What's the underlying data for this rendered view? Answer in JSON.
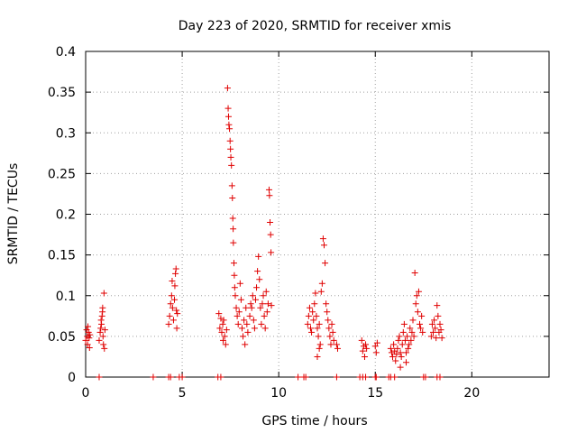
{
  "colors": {
    "series": "#e00000",
    "grid": "#a0a0a0",
    "axis": "#000000",
    "background": "#ffffff"
  },
  "chart_data": {
    "type": "scatter",
    "title": "Day 223 of 2020, SRMTID for receiver xmis",
    "xlabel": "GPS time / hours",
    "ylabel": "SRMTID / TECUs",
    "xlim": [
      0,
      24
    ],
    "ylim": [
      0,
      0.4
    ],
    "xticks": [
      0,
      5,
      10,
      15,
      20
    ],
    "xtick_labels": [
      "0",
      "5",
      "10",
      "15",
      "20"
    ],
    "yticks": [
      0,
      0.05,
      0.1,
      0.15,
      0.2,
      0.25,
      0.3,
      0.35,
      0.4
    ],
    "ytick_labels": [
      "0",
      "0.05",
      "0.1",
      "0.15",
      "0.2",
      "0.25",
      "0.3",
      "0.35",
      "0.4"
    ],
    "grid": true,
    "marker": "+",
    "series": [
      {
        "name": "SRMTID",
        "points": [
          [
            0.0,
            0.045
          ],
          [
            0.05,
            0.058
          ],
          [
            0.08,
            0.05
          ],
          [
            0.1,
            0.04
          ],
          [
            0.12,
            0.062
          ],
          [
            0.15,
            0.055
          ],
          [
            0.18,
            0.048
          ],
          [
            0.2,
            0.036
          ],
          [
            0.22,
            0.052
          ],
          [
            0.7,
            0.045
          ],
          [
            0.75,
            0.055
          ],
          [
            0.78,
            0.06
          ],
          [
            0.8,
            0.07
          ],
          [
            0.82,
            0.065
          ],
          [
            0.85,
            0.075
          ],
          [
            0.87,
            0.08
          ],
          [
            0.9,
            0.05
          ],
          [
            0.92,
            0.04
          ],
          [
            0.95,
            0.103
          ],
          [
            0.97,
            0.035
          ],
          [
            1.0,
            0.058
          ],
          [
            0.88,
            0.085
          ],
          [
            4.3,
            0.065
          ],
          [
            4.35,
            0.075
          ],
          [
            4.4,
            0.09
          ],
          [
            4.45,
            0.1
          ],
          [
            4.48,
            0.118
          ],
          [
            4.5,
            0.085
          ],
          [
            4.55,
            0.07
          ],
          [
            4.6,
            0.095
          ],
          [
            4.62,
            0.112
          ],
          [
            4.65,
            0.127
          ],
          [
            4.68,
            0.133
          ],
          [
            4.7,
            0.082
          ],
          [
            4.72,
            0.06
          ],
          [
            4.75,
            0.078
          ],
          [
            6.9,
            0.078
          ],
          [
            6.95,
            0.06
          ],
          [
            7.0,
            0.072
          ],
          [
            7.05,
            0.055
          ],
          [
            7.1,
            0.065
          ],
          [
            7.12,
            0.045
          ],
          [
            7.15,
            0.07
          ],
          [
            7.2,
            0.05
          ],
          [
            7.25,
            0.04
          ],
          [
            7.3,
            0.058
          ],
          [
            7.35,
            0.355
          ],
          [
            7.38,
            0.33
          ],
          [
            7.4,
            0.32
          ],
          [
            7.42,
            0.31
          ],
          [
            7.45,
            0.305
          ],
          [
            7.48,
            0.29
          ],
          [
            7.5,
            0.28
          ],
          [
            7.52,
            0.27
          ],
          [
            7.55,
            0.26
          ],
          [
            7.58,
            0.235
          ],
          [
            7.6,
            0.22
          ],
          [
            7.62,
            0.195
          ],
          [
            7.64,
            0.182
          ],
          [
            7.65,
            0.165
          ],
          [
            7.68,
            0.14
          ],
          [
            7.7,
            0.125
          ],
          [
            7.72,
            0.11
          ],
          [
            7.75,
            0.1
          ],
          [
            7.8,
            0.085
          ],
          [
            7.85,
            0.075
          ],
          [
            7.9,
            0.065
          ],
          [
            7.95,
            0.08
          ],
          [
            8.0,
            0.115
          ],
          [
            8.05,
            0.095
          ],
          [
            8.1,
            0.06
          ],
          [
            8.15,
            0.05
          ],
          [
            8.2,
            0.07
          ],
          [
            8.25,
            0.04
          ],
          [
            8.3,
            0.085
          ],
          [
            8.35,
            0.065
          ],
          [
            8.4,
            0.055
          ],
          [
            8.5,
            0.075
          ],
          [
            8.55,
            0.09
          ],
          [
            8.6,
            0.085
          ],
          [
            8.65,
            0.1
          ],
          [
            8.7,
            0.07
          ],
          [
            8.75,
            0.06
          ],
          [
            8.8,
            0.095
          ],
          [
            8.85,
            0.11
          ],
          [
            8.9,
            0.13
          ],
          [
            8.95,
            0.148
          ],
          [
            9.0,
            0.12
          ],
          [
            9.05,
            0.085
          ],
          [
            9.1,
            0.065
          ],
          [
            9.15,
            0.09
          ],
          [
            9.2,
            0.1
          ],
          [
            9.25,
            0.075
          ],
          [
            9.3,
            0.06
          ],
          [
            9.35,
            0.105
          ],
          [
            9.4,
            0.08
          ],
          [
            9.45,
            0.09
          ],
          [
            9.5,
            0.23
          ],
          [
            9.52,
            0.223
          ],
          [
            9.55,
            0.19
          ],
          [
            9.58,
            0.175
          ],
          [
            9.6,
            0.153
          ],
          [
            9.62,
            0.088
          ],
          [
            11.5,
            0.065
          ],
          [
            11.55,
            0.075
          ],
          [
            11.6,
            0.085
          ],
          [
            11.65,
            0.06
          ],
          [
            11.7,
            0.055
          ],
          [
            11.75,
            0.08
          ],
          [
            11.8,
            0.07
          ],
          [
            11.85,
            0.09
          ],
          [
            11.9,
            0.103
          ],
          [
            11.95,
            0.075
          ],
          [
            12.0,
            0.06
          ],
          [
            12.05,
            0.05
          ],
          [
            12.1,
            0.065
          ],
          [
            12.15,
            0.04
          ],
          [
            12.2,
            0.105
          ],
          [
            12.25,
            0.115
          ],
          [
            12.3,
            0.17
          ],
          [
            12.35,
            0.162
          ],
          [
            12.4,
            0.14
          ],
          [
            12.45,
            0.09
          ],
          [
            12.5,
            0.08
          ],
          [
            12.55,
            0.07
          ],
          [
            12.6,
            0.06
          ],
          [
            12.65,
            0.05
          ],
          [
            12.7,
            0.04
          ],
          [
            12.75,
            0.065
          ],
          [
            12.8,
            0.055
          ],
          [
            12.85,
            0.045
          ],
          [
            12.0,
            0.025
          ],
          [
            12.1,
            0.035
          ],
          [
            13.0,
            0.04
          ],
          [
            13.05,
            0.035
          ],
          [
            14.3,
            0.045
          ],
          [
            14.35,
            0.032
          ],
          [
            14.4,
            0.038
          ],
          [
            14.45,
            0.025
          ],
          [
            14.5,
            0.04
          ],
          [
            14.55,
            0.035
          ],
          [
            15.0,
            0.038
          ],
          [
            15.05,
            0.03
          ],
          [
            15.1,
            0.042
          ],
          [
            15.8,
            0.035
          ],
          [
            15.85,
            0.03
          ],
          [
            15.9,
            0.025
          ],
          [
            15.95,
            0.04
          ],
          [
            16.0,
            0.032
          ],
          [
            16.05,
            0.02
          ],
          [
            16.1,
            0.028
          ],
          [
            16.15,
            0.035
          ],
          [
            16.2,
            0.045
          ],
          [
            16.25,
            0.05
          ],
          [
            16.3,
            0.03
          ],
          [
            16.35,
            0.025
          ],
          [
            16.4,
            0.04
          ],
          [
            16.45,
            0.055
          ],
          [
            16.5,
            0.065
          ],
          [
            16.55,
            0.045
          ],
          [
            16.6,
            0.03
          ],
          [
            16.65,
            0.05
          ],
          [
            16.7,
            0.035
          ],
          [
            16.75,
            0.04
          ],
          [
            16.8,
            0.06
          ],
          [
            16.85,
            0.045
          ],
          [
            16.9,
            0.055
          ],
          [
            16.95,
            0.07
          ],
          [
            17.0,
            0.05
          ],
          [
            17.05,
            0.128
          ],
          [
            17.1,
            0.09
          ],
          [
            17.15,
            0.1
          ],
          [
            17.2,
            0.08
          ],
          [
            17.25,
            0.105
          ],
          [
            17.3,
            0.065
          ],
          [
            17.35,
            0.06
          ],
          [
            17.4,
            0.075
          ],
          [
            17.45,
            0.055
          ],
          [
            16.3,
            0.012
          ],
          [
            16.6,
            0.018
          ],
          [
            17.9,
            0.05
          ],
          [
            17.95,
            0.065
          ],
          [
            18.0,
            0.055
          ],
          [
            18.05,
            0.07
          ],
          [
            18.1,
            0.06
          ],
          [
            18.15,
            0.048
          ],
          [
            18.2,
            0.088
          ],
          [
            18.25,
            0.075
          ],
          [
            18.3,
            0.055
          ],
          [
            18.35,
            0.065
          ],
          [
            18.4,
            0.058
          ],
          [
            18.45,
            0.048
          ],
          [
            0.7,
            0.0
          ],
          [
            3.5,
            0.0
          ],
          [
            4.3,
            0.0
          ],
          [
            4.4,
            0.0
          ],
          [
            4.85,
            0.0
          ],
          [
            5.0,
            0.0
          ],
          [
            6.85,
            0.0
          ],
          [
            7.0,
            0.0
          ],
          [
            11.0,
            0.0
          ],
          [
            11.3,
            0.0
          ],
          [
            11.4,
            0.0
          ],
          [
            13.0,
            0.0
          ],
          [
            14.2,
            0.0
          ],
          [
            14.35,
            0.0
          ],
          [
            14.5,
            0.0
          ],
          [
            15.0,
            0.0
          ],
          [
            15.05,
            0.0
          ],
          [
            15.7,
            0.0
          ],
          [
            15.8,
            0.0
          ],
          [
            16.0,
            0.0
          ],
          [
            17.5,
            0.0
          ],
          [
            17.6,
            0.0
          ],
          [
            18.2,
            0.0
          ],
          [
            18.35,
            0.0
          ]
        ]
      }
    ]
  }
}
